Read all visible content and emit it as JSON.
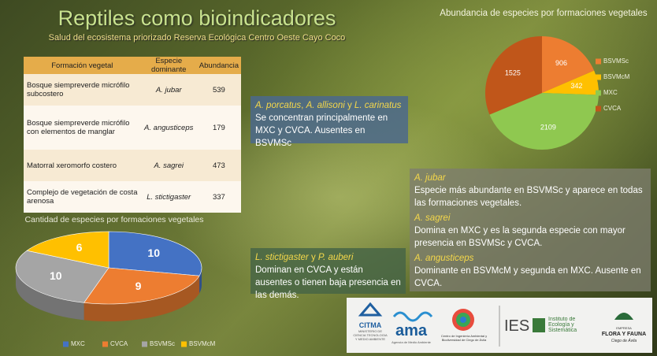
{
  "header": {
    "title": "Reptiles como bioindicadores",
    "subtitle": "Salud del ecosistema priorizado Reserva Ecológica Centro Oeste Cayo Coco"
  },
  "table": {
    "columns": [
      "Formación vegetal",
      "Especie dominante",
      "Abundancia"
    ],
    "rows": [
      [
        "Bosque siempreverde micrófilo subcostero",
        "A. jubar",
        "539"
      ],
      [
        "Bosque siempreverde micrófilo con elementos de manglar",
        "A. angusticeps",
        "179"
      ],
      [
        "Matorral xeromorfo costero",
        "A. sagrei",
        "473"
      ],
      [
        "Complejo de vegetación de costa arenosa",
        "L. stictigaster",
        "337"
      ]
    ]
  },
  "chart_data": [
    {
      "type": "pie",
      "title": "Abundancia de especies por formaciones vegetales",
      "categories": [
        "BSVMSc",
        "BSVMcM",
        "MXC",
        "CVCA"
      ],
      "values": [
        906,
        342,
        2109,
        1525
      ],
      "colors": [
        "#ed7d31",
        "#ffc000",
        "#8fc850",
        "#c0561a"
      ],
      "legend": "right"
    },
    {
      "type": "pie3d",
      "title": "Cantidad de especies por formaciones vegetales",
      "categories": [
        "MXC",
        "CVCA",
        "BSVMSc",
        "BSVMcM"
      ],
      "values": [
        10,
        9,
        10,
        6
      ],
      "colors": [
        "#4472c4",
        "#ed7d31",
        "#a5a5a5",
        "#ffc000"
      ],
      "legend": "bottom"
    }
  ],
  "notes": [
    {
      "heading": [
        {
          "text": "A. porcatus",
          "italic": true
        },
        {
          "text": ", ",
          "italic": false
        },
        {
          "text": "A. allisoni",
          "italic": true
        },
        {
          "text": " y ",
          "italic": false
        },
        {
          "text": "L. carinatus",
          "italic": true
        }
      ],
      "body": "Se concentran principalmente en MXC y CVCA. Ausentes en BSVMSc"
    },
    {
      "heading": [
        {
          "text": "L. stictigaster",
          "italic": true
        },
        {
          "text": " y ",
          "italic": false
        },
        {
          "text": "P. auberi",
          "italic": true
        }
      ],
      "body": "Dominan en CVCA y están ausentes o tienen baja presencia en las demás."
    }
  ],
  "species_notes": [
    {
      "species": "A. jubar",
      "text": "Especie más abundante en BSVMSc y aparece en todas las formaciones vegetales."
    },
    {
      "species": "A. sagrei",
      "text": "Domina en MXC y es la segunda especie con mayor presencia en BSVMSc y CVCA."
    },
    {
      "species": "A. angusticeps",
      "text": "Dominante en BSVMcM y segunda en MXC. Ausente en CVCA."
    }
  ],
  "logos": {
    "citma": "CITMA",
    "citma_sub": "MINISTERIO DE CIENCIA TECNOLOGIA Y MEDIO AMBIENTE",
    "ama": "ama",
    "ama_sub": "Agencia de Medio Ambiente",
    "ciba": "Centro de Ingeniería Ambiental y Biodiversidad de Ciego de Ávila",
    "ies": "IES",
    "ies_sub": "Instituto de Ecología y Sistemática",
    "ff_top": "EMPRESA",
    "ff": "FLORA Y FAUNA",
    "ff_sub": "Ciego de Ávila"
  }
}
